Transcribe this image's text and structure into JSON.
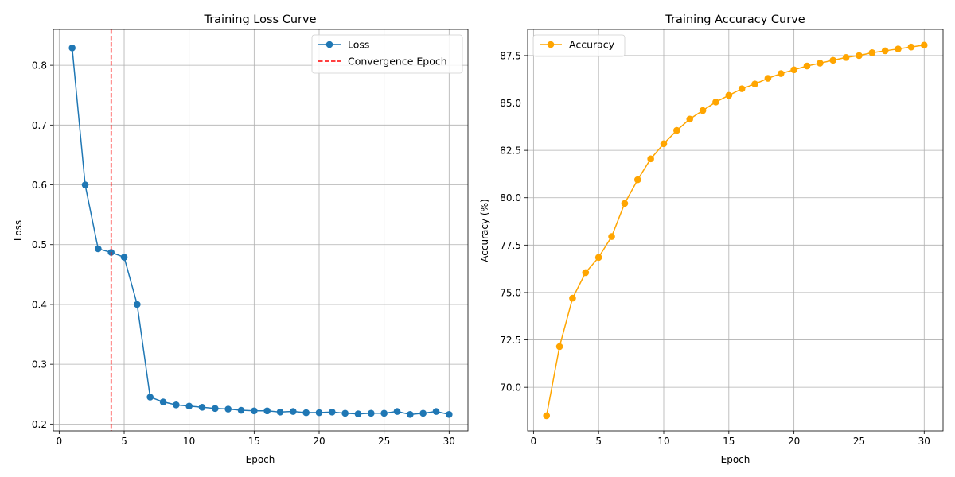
{
  "chart_data": [
    {
      "type": "line",
      "title": "Training Loss Curve",
      "xlabel": "Epoch",
      "ylabel": "Loss",
      "xlim": [
        -0.45,
        31.45
      ],
      "ylim": [
        0.1885,
        0.86
      ],
      "xticks": [
        0,
        5,
        10,
        15,
        20,
        25,
        30
      ],
      "yticks": [
        0.2,
        0.3,
        0.4,
        0.5,
        0.6,
        0.7,
        0.8
      ],
      "yticks_format": 1,
      "grid": true,
      "legend_position": "top-right",
      "series": [
        {
          "name": "Loss",
          "color": "#1f77b4",
          "marker": "circle",
          "x": [
            1,
            2,
            3,
            4,
            5,
            6,
            7,
            8,
            9,
            10,
            11,
            12,
            13,
            14,
            15,
            16,
            17,
            18,
            19,
            20,
            21,
            22,
            23,
            24,
            25,
            26,
            27,
            28,
            29,
            30
          ],
          "y": [
            0.829,
            0.6,
            0.493,
            0.487,
            0.479,
            0.4,
            0.245,
            0.237,
            0.232,
            0.23,
            0.228,
            0.226,
            0.225,
            0.223,
            0.222,
            0.222,
            0.22,
            0.221,
            0.219,
            0.219,
            0.22,
            0.218,
            0.217,
            0.218,
            0.218,
            0.221,
            0.216,
            0.218,
            0.221,
            0.216
          ]
        }
      ],
      "vlines": [
        {
          "name": "Convergence Epoch",
          "x": 4,
          "color": "#ff0000",
          "style": "dashed"
        }
      ]
    },
    {
      "type": "line",
      "title": "Training Accuracy Curve",
      "xlabel": "Epoch",
      "ylabel": "Accuracy (%)",
      "xlim": [
        -0.45,
        31.45
      ],
      "ylim": [
        67.7,
        88.88
      ],
      "xticks": [
        0,
        5,
        10,
        15,
        20,
        25,
        30
      ],
      "yticks": [
        70.0,
        72.5,
        75.0,
        77.5,
        80.0,
        82.5,
        85.0,
        87.5
      ],
      "yticks_format": 1,
      "grid": true,
      "legend_position": "top-left",
      "series": [
        {
          "name": "Accuracy",
          "color": "#ffa500",
          "marker": "circle",
          "x": [
            1,
            2,
            3,
            4,
            5,
            6,
            7,
            8,
            9,
            10,
            11,
            12,
            13,
            14,
            15,
            16,
            17,
            18,
            19,
            20,
            21,
            22,
            23,
            24,
            25,
            26,
            27,
            28,
            29,
            30
          ],
          "y": [
            68.5,
            72.15,
            74.7,
            76.05,
            76.85,
            77.95,
            79.7,
            80.95,
            82.05,
            82.85,
            83.55,
            84.15,
            84.6,
            85.05,
            85.4,
            85.75,
            86.0,
            86.3,
            86.55,
            86.75,
            86.95,
            87.1,
            87.25,
            87.4,
            87.5,
            87.65,
            87.75,
            87.85,
            87.95,
            88.05
          ]
        }
      ],
      "vlines": []
    }
  ]
}
